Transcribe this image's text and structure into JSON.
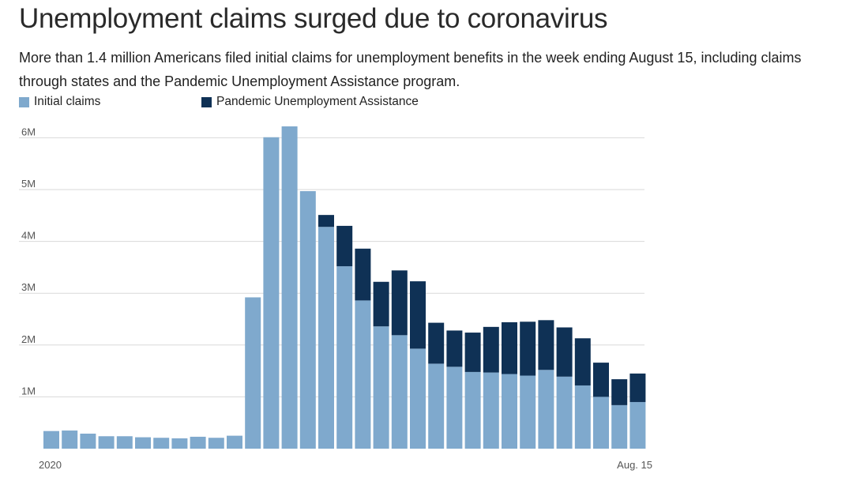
{
  "page": {
    "title": "Unemployment claims surged due to coronavirus",
    "subtitle": "More than 1.4 million Americans filed initial claims for unemployment benefits in the week ending August 15, including claims through states and the Pandemic Unemployment Assistance program."
  },
  "colors": {
    "initial": "#7fa9cd",
    "pua": "#0f3155",
    "grid": "#d9d9d9"
  },
  "chart_data": {
    "type": "bar",
    "stacked": true,
    "title": "Unemployment claims surged due to coronavirus",
    "subtitle": "More than 1.4 million Americans filed initial claims for unemployment benefits in the week ending August 15, including claims through states and the Pandemic Unemployment Assistance program.",
    "x_labels": [
      "2020",
      "Aug. 15"
    ],
    "y_ticks": [
      1000000,
      2000000,
      3000000,
      4000000,
      5000000,
      6000000
    ],
    "y_tick_labels": [
      "1M",
      "2M",
      "3M",
      "4M",
      "5M",
      "6M"
    ],
    "ylim": [
      0,
      6400000
    ],
    "grid": true,
    "legend_position": "top-left",
    "series": [
      {
        "name": "Initial claims",
        "values": [
          0.34,
          0.35,
          0.29,
          0.24,
          0.24,
          0.22,
          0.21,
          0.2,
          0.23,
          0.21,
          0.25,
          2.92,
          6.01,
          6.22,
          4.97,
          4.28,
          3.52,
          2.86,
          2.36,
          2.19,
          1.93,
          1.64,
          1.58,
          1.48,
          1.47,
          1.44,
          1.41,
          1.52,
          1.39,
          1.22,
          1.0,
          0.84,
          0.9
        ]
      },
      {
        "name": "Pandemic Unemployment Assistance",
        "values": [
          0,
          0,
          0,
          0,
          0,
          0,
          0,
          0,
          0,
          0,
          0,
          0,
          0,
          0,
          0,
          0.23,
          0.78,
          1.0,
          0.86,
          1.25,
          1.3,
          0.79,
          0.7,
          0.76,
          0.88,
          1.0,
          1.04,
          0.96,
          0.95,
          0.91,
          0.66,
          0.5,
          0.55
        ]
      }
    ],
    "value_unit_multiplier": 1000000
  }
}
